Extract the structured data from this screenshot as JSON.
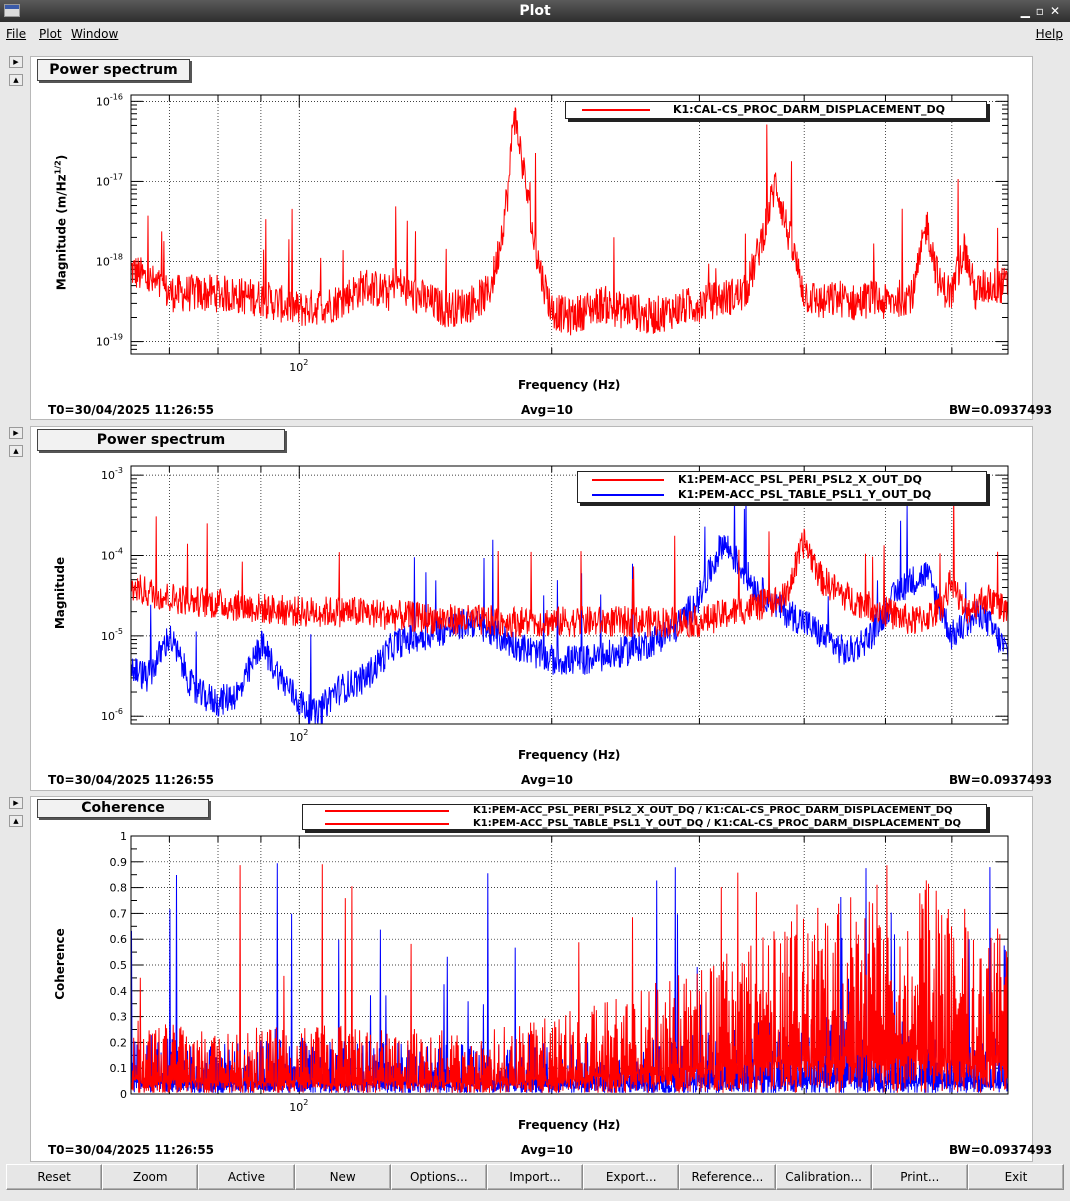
{
  "window": {
    "title": "Plot"
  },
  "menu": {
    "file": "File",
    "plot": "Plot",
    "window": "Window",
    "help": "Help"
  },
  "panels": [
    {
      "title": "Power spectrum",
      "ylabel": "Magnitude (m/Hz^1/2)",
      "xlabel": "Frequency (Hz)",
      "footer": {
        "t0": "T0=30/04/2025 11:26:55",
        "avg": "Avg=10",
        "bw": "BW=0.0937493"
      },
      "legend": [
        "K1:CAL-CS_PROC_DARM_DISPLACEMENT_DQ"
      ]
    },
    {
      "title": "Power spectrum",
      "ylabel": "Magnitude",
      "xlabel": "Frequency (Hz)",
      "footer": {
        "t0": "T0=30/04/2025 11:26:55",
        "avg": "Avg=10",
        "bw": "BW=0.0937493"
      },
      "legend": [
        "K1:PEM-ACC_PSL_PERI_PSL2_X_OUT_DQ",
        "K1:PEM-ACC_PSL_TABLE_PSL1_Y_OUT_DQ"
      ]
    },
    {
      "title": "Coherence",
      "ylabel": "Coherence",
      "xlabel": "Frequency (Hz)",
      "footer": {
        "t0": "T0=30/04/2025 11:26:55",
        "avg": "Avg=10",
        "bw": "BW=0.0937493"
      },
      "legend": [
        "K1:PEM-ACC_PSL_PERI_PSL2_X_OUT_DQ / K1:CAL-CS_PROC_DARM_DISPLACEMENT_DQ",
        "K1:PEM-ACC_PSL_TABLE_PSL1_Y_OUT_DQ / K1:CAL-CS_PROC_DARM_DISPLACEMENT_DQ"
      ]
    }
  ],
  "buttons": [
    "Reset",
    "Zoom",
    "Active",
    "New",
    "Options...",
    "Import...",
    "Export...",
    "Reference...",
    "Calibration...",
    "Print...",
    "Exit"
  ],
  "colors": {
    "red": "#ff0000",
    "blue": "#0000ff"
  },
  "chart_data": [
    {
      "type": "line",
      "title": "Power spectrum",
      "xlabel": "Frequency (Hz)",
      "ylabel": "Magnitude (m/Hz^1/2)",
      "xscale": "log",
      "yscale": "log",
      "xlim": [
        63,
        700
      ],
      "ylim": [
        7e-20,
        1.2e-16
      ],
      "xticklabels": [
        "10^2"
      ],
      "yticklabels": [
        "10^-19",
        "10^-18",
        "10^-17",
        "10^-16"
      ],
      "legend_position": "top-right",
      "grid": true,
      "series": [
        {
          "name": "K1:CAL-CS_PROC_DARM_DISPLACEMENT_DQ",
          "color": "#ff0000",
          "x": [
            63,
            70,
            80,
            90,
            100,
            110,
            120,
            128,
            130,
            135,
            140,
            150,
            160,
            168,
            170,
            172,
            175,
            178,
            180,
            183,
            186,
            190,
            195,
            200,
            210,
            220,
            230,
            240,
            250,
            260,
            280,
            300,
            320,
            340,
            350,
            360,
            370,
            380,
            400,
            420,
            440,
            460,
            480,
            500,
            520,
            540,
            560,
            580,
            600,
            620,
            640,
            660,
            680,
            700
          ],
          "y": [
            8e-19,
            4e-19,
            4e-19,
            3.5e-19,
            2.5e-19,
            3e-19,
            5e-19,
            4e-19,
            6e-19,
            4e-19,
            3.5e-19,
            2.5e-19,
            3e-19,
            4e-19,
            6e-19,
            1e-18,
            3e-18,
            1e-17,
            8e-17,
            3e-17,
            1e-17,
            2e-18,
            6e-19,
            2.5e-19,
            2e-19,
            2.5e-19,
            3e-19,
            2.5e-19,
            2.5e-19,
            2e-19,
            2.5e-19,
            3e-19,
            3.5e-19,
            4e-19,
            1e-18,
            3e-18,
            1e-17,
            3e-18,
            4e-19,
            3e-19,
            3.5e-19,
            3e-19,
            3.5e-19,
            3e-19,
            3.5e-19,
            4e-19,
            3e-18,
            5e-19,
            4e-19,
            1.5e-18,
            4e-19,
            5e-19,
            5e-19,
            5e-19
          ]
        }
      ]
    },
    {
      "type": "line",
      "title": "Power spectrum",
      "xlabel": "Frequency (Hz)",
      "ylabel": "Magnitude",
      "xscale": "log",
      "yscale": "log",
      "xlim": [
        63,
        700
      ],
      "ylim": [
        8e-07,
        0.0013
      ],
      "xticklabels": [
        "10^2"
      ],
      "yticklabels": [
        "10^-6",
        "10^-5",
        "10^-4",
        "10^-3"
      ],
      "legend_position": "top-right",
      "grid": true,
      "series": [
        {
          "name": "K1:PEM-ACC_PSL_PERI_PSL2_X_OUT_DQ",
          "color": "#ff0000",
          "x": [
            63,
            70,
            80,
            90,
            100,
            115,
            130,
            150,
            180,
            200,
            250,
            300,
            330,
            360,
            380,
            400,
            420,
            450,
            500,
            540,
            580,
            600,
            620,
            660,
            700
          ],
          "y": [
            4e-05,
            3e-05,
            2.5e-05,
            2.2e-05,
            2e-05,
            2e-05,
            1.8e-05,
            1.6e-05,
            1.5e-05,
            1.5e-05,
            1.5e-05,
            1.5e-05,
            2e-05,
            2.5e-05,
            3e-05,
            0.00015,
            5e-05,
            3e-05,
            2e-05,
            1.5e-05,
            2e-05,
            5e-05,
            2e-05,
            3e-05,
            2e-05
          ]
        },
        {
          "name": "K1:PEM-ACC_PSL_TABLE_PSL1_Y_OUT_DQ",
          "color": "#0000ff",
          "x": [
            63,
            66,
            70,
            75,
            80,
            85,
            90,
            95,
            100,
            105,
            110,
            120,
            130,
            140,
            150,
            160,
            180,
            200,
            220,
            240,
            260,
            280,
            300,
            320,
            350,
            380,
            400,
            420,
            450,
            480,
            500,
            520,
            560,
            600,
            650,
            700
          ],
          "y": [
            4e-06,
            3e-06,
            1e-05,
            2e-06,
            1.5e-06,
            2e-06,
            8e-06,
            3e-06,
            1.5e-06,
            1e-06,
            2e-06,
            3e-06,
            8e-06,
            1e-05,
            1.2e-05,
            1.5e-05,
            8e-06,
            5e-06,
            5e-06,
            6e-06,
            8e-06,
            1.2e-05,
            3e-05,
            0.00015,
            4e-05,
            2e-05,
            1.5e-05,
            1e-05,
            6e-06,
            1e-05,
            2e-05,
            4e-05,
            6e-05,
            1e-05,
            2e-05,
            6e-06
          ]
        }
      ]
    },
    {
      "type": "line",
      "title": "Coherence",
      "xlabel": "Frequency (Hz)",
      "ylabel": "Coherence",
      "xscale": "log",
      "yscale": "linear",
      "xlim": [
        63,
        700
      ],
      "ylim": [
        0,
        1
      ],
      "xticklabels": [
        "10^2"
      ],
      "yticklabels": [
        "0",
        "0.1",
        "0.2",
        "0.3",
        "0.4",
        "0.5",
        "0.6",
        "0.7",
        "0.8",
        "0.9",
        "1"
      ],
      "legend_position": "top-right",
      "grid": true,
      "series": [
        {
          "name": "K1:PEM-ACC_PSL_PERI_PSL2_X_OUT_DQ / K1:CAL-CS_PROC_DARM_DISPLACEMENT_DQ",
          "color": "#ff0000",
          "x": [
            63,
            80,
            100,
            130,
            160,
            200,
            250,
            300,
            350,
            400,
            450,
            500,
            550,
            600,
            650,
            700
          ],
          "y": [
            0.15,
            0.12,
            0.14,
            0.13,
            0.12,
            0.15,
            0.2,
            0.25,
            0.3,
            0.35,
            0.4,
            0.4,
            0.45,
            0.35,
            0.3,
            0.35
          ]
        },
        {
          "name": "K1:PEM-ACC_PSL_TABLE_PSL1_Y_OUT_DQ / K1:CAL-CS_PROC_DARM_DISPLACEMENT_DQ",
          "color": "#0000ff",
          "x": [
            63,
            80,
            100,
            130,
            160,
            200,
            250,
            300,
            350,
            400,
            450,
            500,
            550,
            600,
            650,
            700
          ],
          "y": [
            0.12,
            0.1,
            0.11,
            0.1,
            0.1,
            0.1,
            0.1,
            0.12,
            0.15,
            0.15,
            0.15,
            0.12,
            0.12,
            0.12,
            0.12,
            0.12
          ]
        }
      ]
    }
  ]
}
